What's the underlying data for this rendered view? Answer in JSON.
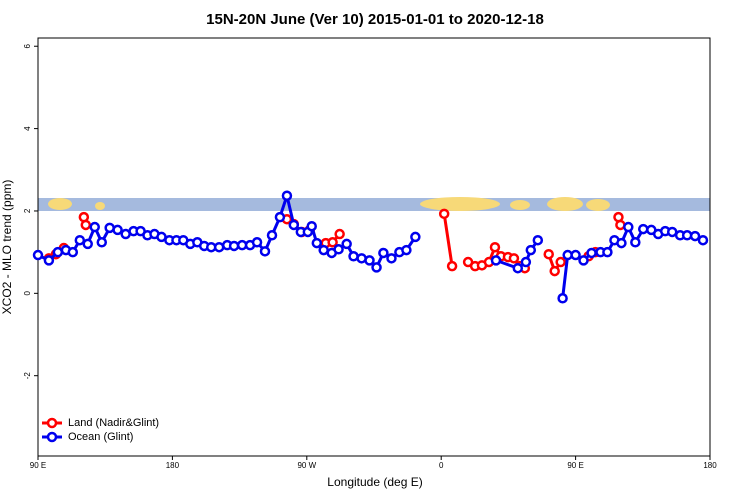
{
  "chart_data": {
    "type": "line",
    "title": "15N-20N June (Ver 10)   2015-01-01 to 2020-12-18",
    "xlabel": "Longitude (deg E)",
    "ylabel": "XCO2 - MLO trend (ppm)",
    "xlim": [
      90,
      540
    ],
    "ylim": [
      -3.95,
      6.2
    ],
    "xticks": [
      {
        "value": 90,
        "label": "90 E"
      },
      180,
      {
        "value": 270,
        "label": "90 W"
      },
      {
        "value": 360,
        "label": "0"
      },
      {
        "value": 450,
        "label": "90 E"
      },
      {
        "value": 540,
        "label": "180"
      }
    ],
    "yticks": [
      -2,
      0,
      2,
      4,
      6
    ],
    "legend": "bottom-left",
    "series": [
      {
        "name": "Land (Nadir&Glint)",
        "color": "#ff0000",
        "x": [
          97.3,
          102,
          107.3,
          null,
          120.7,
          122,
          null,
          256.7,
          261.3,
          266.7,
          272,
          null,
          282.7,
          287.3,
          292,
          null,
          362,
          367.3,
          null,
          378,
          382.7,
          387.3,
          392,
          396,
          400,
          404.7,
          408.7,
          412.7,
          416,
          null,
          432,
          436,
          440,
          null,
          458.7,
          463.3,
          null,
          478.7,
          480
        ],
        "values": [
          0.85,
          0.95,
          1.1,
          null,
          1.85,
          1.66,
          null,
          1.8,
          1.68,
          1.49,
          1.54,
          null,
          1.22,
          1.24,
          1.44,
          null,
          1.93,
          0.66,
          null,
          0.76,
          0.66,
          0.68,
          0.76,
          1.12,
          0.9,
          0.88,
          0.85,
          0.66,
          0.61,
          null,
          0.95,
          0.54,
          0.76,
          null,
          0.9,
          1.0,
          null,
          1.85,
          1.66
        ]
      },
      {
        "name": "Ocean (Glint)",
        "color": "#0000ee",
        "x": [
          90,
          97.3,
          103.3,
          108.7,
          113.3,
          118,
          123.3,
          128,
          132.7,
          138,
          143.3,
          148.7,
          154,
          158.7,
          163.3,
          168,
          172.7,
          178,
          182.7,
          187.3,
          192,
          196.7,
          201.3,
          206,
          211.3,
          216.7,
          221.3,
          226.7,
          232,
          236.7,
          242,
          246.7,
          252,
          256.7,
          261.3,
          266,
          270.7,
          273.3,
          276.7,
          281.3,
          286.7,
          291.3,
          296.7,
          301.3,
          306.7,
          312,
          316.7,
          321.3,
          326.7,
          332,
          336.7,
          342.7,
          null,
          396.7,
          411.3,
          416.7,
          420,
          424.7,
          null,
          441.3,
          444.7,
          450,
          455.3,
          460.7,
          466.7,
          471.3,
          476,
          480.7,
          485.3,
          490,
          495.3,
          500.7,
          505.3,
          510,
          514.7,
          520,
          524.7,
          530,
          535.3
        ],
        "values": [
          0.93,
          0.8,
          1.0,
          1.05,
          1.0,
          1.29,
          1.2,
          1.61,
          1.24,
          1.59,
          1.54,
          1.44,
          1.51,
          1.51,
          1.41,
          1.44,
          1.37,
          1.29,
          1.29,
          1.29,
          1.2,
          1.24,
          1.15,
          1.12,
          1.12,
          1.17,
          1.15,
          1.17,
          1.17,
          1.24,
          1.02,
          1.41,
          1.85,
          2.37,
          1.66,
          1.49,
          1.49,
          1.63,
          1.22,
          1.05,
          0.98,
          1.07,
          1.2,
          0.9,
          0.85,
          0.8,
          0.63,
          0.98,
          0.85,
          1.0,
          1.05,
          1.37,
          null,
          0.8,
          0.61,
          0.76,
          1.05,
          1.29,
          null,
          -0.12,
          0.93,
          0.93,
          0.8,
          0.98,
          1.0,
          1.0,
          1.29,
          1.22,
          1.61,
          1.24,
          1.56,
          1.54,
          1.44,
          1.51,
          1.49,
          1.41,
          1.41,
          1.39,
          1.29
        ]
      }
    ]
  }
}
